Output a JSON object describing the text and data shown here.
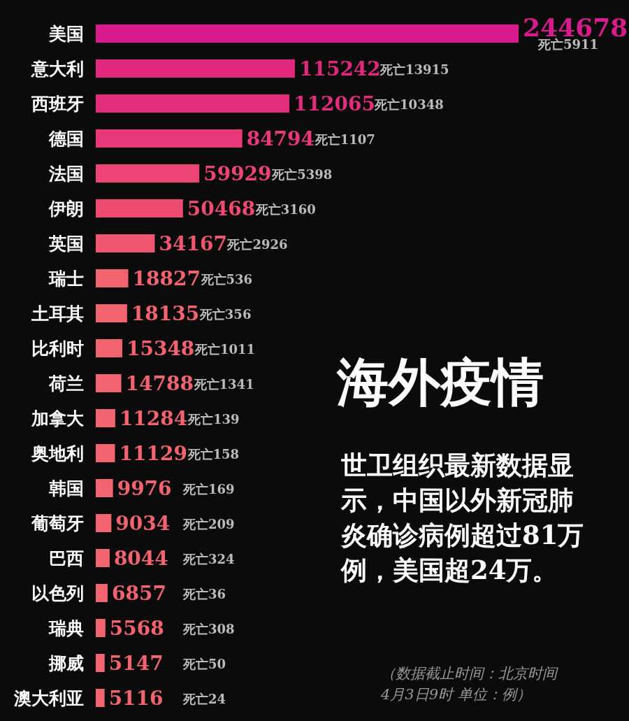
{
  "chart_data": {
    "type": "bar",
    "orientation": "horizontal",
    "title": "海外疫情",
    "subtitle": "世卫组织最新数据显示，中国以外新冠肺炎确诊病例超过81万例，美国超24万。",
    "categories": [
      "美国",
      "意大利",
      "西班牙",
      "德国",
      "法国",
      "伊朗",
      "英国",
      "瑞士",
      "土耳其",
      "比利时",
      "荷兰",
      "加拿大",
      "奥地利",
      "韩国",
      "葡萄牙",
      "巴西",
      "以色列",
      "瑞典",
      "挪威",
      "澳大利亚"
    ],
    "values": [
      244678,
      115242,
      112065,
      84794,
      59929,
      50468,
      34167,
      18827,
      18135,
      15348,
      14788,
      11284,
      11129,
      9976,
      9034,
      8044,
      6857,
      5568,
      5147,
      5116
    ],
    "colors": [
      "#d81b8c",
      "#e0287e",
      "#e22c7c",
      "#e8387a",
      "#ec4474",
      "#ee4a72",
      "#f05670",
      "#f26470",
      "#f26470",
      "#f26470",
      "#f26470",
      "#f26470",
      "#f26470",
      "#f26470",
      "#f26470",
      "#f26470",
      "#f26470",
      "#f26470",
      "#f26470",
      "#f26470"
    ],
    "data_labels": true,
    "annotations": [
      "死亡5911",
      "死亡13915",
      "死亡10348",
      "死亡1107",
      "死亡5398",
      "死亡3160",
      "死亡2926",
      "死亡536",
      "死亡356",
      "死亡1011",
      "死亡1341",
      "死亡139",
      "死亡158",
      "死亡169",
      "死亡209",
      "死亡324",
      "死亡36",
      "死亡308",
      "死亡50",
      "死亡24",
      "（数据截止时间：北京时间4月3日9时 单位：例）"
    ]
  }
}
